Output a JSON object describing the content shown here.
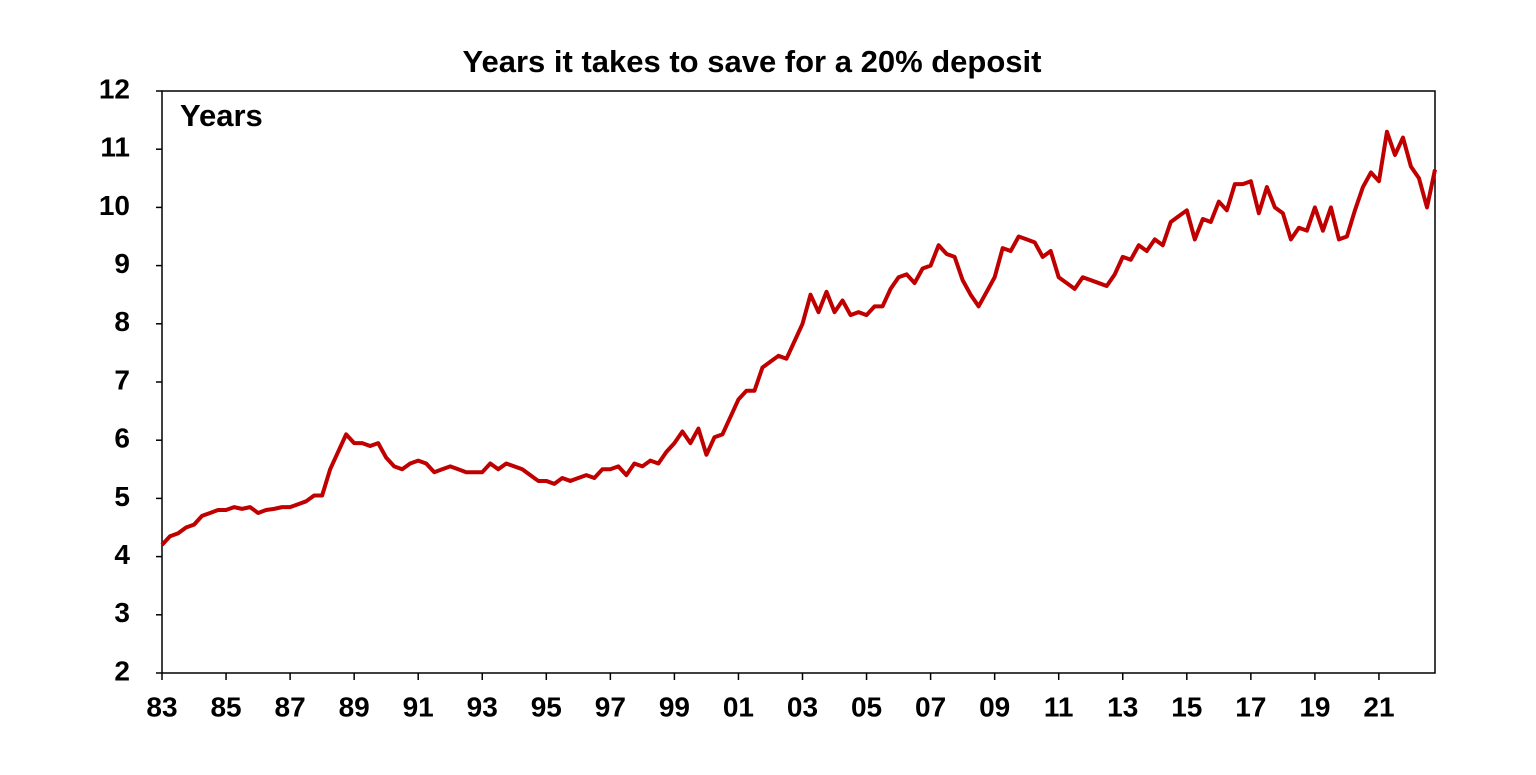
{
  "chart_data": {
    "type": "line",
    "title": "Years it takes to save for a 20% deposit",
    "annotation": "Years",
    "x": [
      1983,
      1983.25,
      1983.5,
      1983.75,
      1984,
      1984.25,
      1984.5,
      1984.75,
      1985,
      1985.25,
      1985.5,
      1985.75,
      1986,
      1986.25,
      1986.5,
      1986.75,
      1987,
      1987.25,
      1987.5,
      1987.75,
      1988,
      1988.25,
      1988.5,
      1988.75,
      1989,
      1989.25,
      1989.5,
      1989.75,
      1990,
      1990.25,
      1990.5,
      1990.75,
      1991,
      1991.25,
      1991.5,
      1991.75,
      1992,
      1992.25,
      1992.5,
      1992.75,
      1993,
      1993.25,
      1993.5,
      1993.75,
      1994,
      1994.25,
      1994.5,
      1994.75,
      1995,
      1995.25,
      1995.5,
      1995.75,
      1996,
      1996.25,
      1996.5,
      1996.75,
      1997,
      1997.25,
      1997.5,
      1997.75,
      1998,
      1998.25,
      1998.5,
      1998.75,
      1999,
      1999.25,
      1999.5,
      1999.75,
      2000,
      2000.25,
      2000.5,
      2000.75,
      2001,
      2001.25,
      2001.5,
      2001.75,
      2002,
      2002.25,
      2002.5,
      2002.75,
      2003,
      2003.25,
      2003.5,
      2003.75,
      2004,
      2004.25,
      2004.5,
      2004.75,
      2005,
      2005.25,
      2005.5,
      2005.75,
      2006,
      2006.25,
      2006.5,
      2006.75,
      2007,
      2007.25,
      2007.5,
      2007.75,
      2008,
      2008.25,
      2008.5,
      2008.75,
      2009,
      2009.25,
      2009.5,
      2009.75,
      2010,
      2010.25,
      2010.5,
      2010.75,
      2011,
      2011.25,
      2011.5,
      2011.75,
      2012,
      2012.25,
      2012.5,
      2012.75,
      2013,
      2013.25,
      2013.5,
      2013.75,
      2014,
      2014.25,
      2014.5,
      2014.75,
      2015,
      2015.25,
      2015.5,
      2015.75,
      2016,
      2016.25,
      2016.5,
      2016.75,
      2017,
      2017.25,
      2017.5,
      2017.75,
      2018,
      2018.25,
      2018.5,
      2018.75,
      2019,
      2019.25,
      2019.5,
      2019.75,
      2020,
      2020.25,
      2020.5,
      2020.75,
      2021,
      2021.25,
      2021.5,
      2021.75,
      2022,
      2022.25,
      2022.5,
      2022.75
    ],
    "series": [
      {
        "name": "Years",
        "color": "#c00000",
        "values": [
          4.2,
          4.35,
          4.4,
          4.5,
          4.55,
          4.7,
          4.75,
          4.8,
          4.8,
          4.85,
          4.82,
          4.85,
          4.75,
          4.8,
          4.82,
          4.85,
          4.85,
          4.9,
          4.95,
          5.05,
          5.05,
          5.5,
          5.8,
          6.1,
          5.95,
          5.95,
          5.9,
          5.95,
          5.7,
          5.55,
          5.5,
          5.6,
          5.65,
          5.6,
          5.45,
          5.5,
          5.55,
          5.5,
          5.45,
          5.45,
          5.45,
          5.6,
          5.5,
          5.6,
          5.55,
          5.5,
          5.4,
          5.3,
          5.3,
          5.25,
          5.35,
          5.3,
          5.35,
          5.4,
          5.35,
          5.5,
          5.5,
          5.55,
          5.4,
          5.6,
          5.55,
          5.65,
          5.6,
          5.8,
          5.95,
          6.15,
          5.95,
          6.2,
          5.75,
          6.05,
          6.1,
          6.4,
          6.7,
          6.85,
          6.85,
          7.25,
          7.35,
          7.45,
          7.4,
          7.7,
          8.0,
          8.5,
          8.2,
          8.55,
          8.2,
          8.4,
          8.15,
          8.2,
          8.15,
          8.3,
          8.3,
          8.6,
          8.8,
          8.85,
          8.7,
          8.95,
          9.0,
          9.35,
          9.2,
          9.15,
          8.75,
          8.5,
          8.3,
          8.55,
          8.8,
          9.3,
          9.25,
          9.5,
          9.45,
          9.4,
          9.15,
          9.25,
          8.8,
          8.7,
          8.6,
          8.8,
          8.75,
          8.7,
          8.65,
          8.85,
          9.15,
          9.1,
          9.35,
          9.25,
          9.45,
          9.35,
          9.75,
          9.85,
          9.95,
          9.45,
          9.8,
          9.75,
          10.1,
          9.95,
          10.4,
          10.4,
          10.45,
          9.9,
          10.35,
          10.0,
          9.9,
          9.45,
          9.65,
          9.6,
          10.0,
          9.6,
          10.0,
          9.45,
          9.5,
          9.95,
          10.35,
          10.6,
          10.45,
          11.3,
          10.9,
          11.2,
          10.7,
          10.5,
          10.0,
          10.65
        ]
      }
    ],
    "xlim": [
      1983,
      2022.75
    ],
    "xticks": [
      {
        "value": 1983,
        "label": "83"
      },
      {
        "value": 1985,
        "label": "85"
      },
      {
        "value": 1987,
        "label": "87"
      },
      {
        "value": 1989,
        "label": "89"
      },
      {
        "value": 1991,
        "label": "91"
      },
      {
        "value": 1993,
        "label": "93"
      },
      {
        "value": 1995,
        "label": "95"
      },
      {
        "value": 1997,
        "label": "97"
      },
      {
        "value": 1999,
        "label": "99"
      },
      {
        "value": 2001,
        "label": "01"
      },
      {
        "value": 2003,
        "label": "03"
      },
      {
        "value": 2005,
        "label": "05"
      },
      {
        "value": 2007,
        "label": "07"
      },
      {
        "value": 2009,
        "label": "09"
      },
      {
        "value": 2011,
        "label": "11"
      },
      {
        "value": 2013,
        "label": "13"
      },
      {
        "value": 2015,
        "label": "15"
      },
      {
        "value": 2017,
        "label": "17"
      },
      {
        "value": 2019,
        "label": "19"
      },
      {
        "value": 2021,
        "label": "21"
      }
    ],
    "ylim": [
      2,
      12
    ],
    "yticks": [
      2,
      3,
      4,
      5,
      6,
      7,
      8,
      9,
      10,
      11,
      12
    ],
    "grid": false
  }
}
